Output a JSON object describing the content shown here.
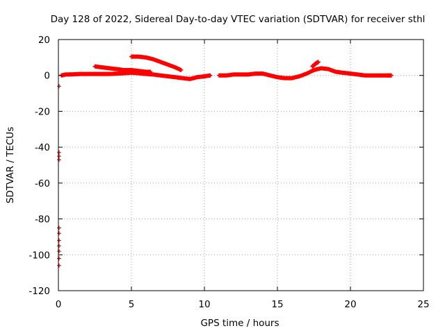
{
  "chart_data": {
    "type": "scatter",
    "title": "Day 128 of 2022, Sidereal Day-to-day VTEC variation (SDTVAR) for receiver sthl",
    "xlabel": "GPS time / hours",
    "ylabel": "SDTVAR / TECUs",
    "xlim": [
      0,
      25
    ],
    "ylim": [
      -120,
      20
    ],
    "xticks": [
      "0",
      "5",
      "10",
      "15",
      "20",
      "25"
    ],
    "yticks": [
      "20",
      "0",
      "-20",
      "-40",
      "-60",
      "-80",
      "-100",
      "-120"
    ],
    "grid": true,
    "marker_color": "#ff0000",
    "outlier_color": "#cc0000",
    "series": [
      {
        "x": [
          0.2,
          0.5,
          1.0,
          1.5,
          2.0,
          2.5,
          3.0,
          3.5,
          4.0,
          4.5,
          5.0,
          5.5,
          6.0,
          6.5,
          7.0,
          7.5,
          8.0,
          8.5,
          9.0,
          9.5,
          10.0,
          10.4,
          11.0,
          11.5,
          12.0,
          12.5,
          13.0,
          13.5,
          14.0,
          14.5,
          15.0,
          15.5,
          16.0,
          16.5,
          17.0,
          17.5,
          18.0,
          18.5,
          19.0,
          19.5,
          20.0,
          20.5,
          21.0,
          21.5,
          22.0,
          22.5,
          22.8
        ],
        "y": [
          0.0,
          0.5,
          0.6,
          0.8,
          0.8,
          0.8,
          0.8,
          0.8,
          1.0,
          1.2,
          1.5,
          1.2,
          0.8,
          0.5,
          0.0,
          -0.5,
          -1.0,
          -1.5,
          -2.0,
          -1.0,
          -0.5,
          0.0,
          0.0,
          0.0,
          0.5,
          0.5,
          0.5,
          1.0,
          1.0,
          0.0,
          -1.0,
          -1.5,
          -1.5,
          -0.5,
          1.0,
          3.0,
          4.0,
          3.5,
          2.0,
          1.5,
          1.0,
          0.5,
          0.0,
          0.0,
          0.0,
          0.0,
          0.0
        ]
      },
      {
        "x": [
          2.5,
          3.0,
          3.5,
          4.0,
          4.5,
          5.0,
          5.5,
          6.0,
          6.3
        ],
        "y": [
          5.0,
          4.5,
          4.0,
          3.5,
          3.0,
          3.0,
          2.5,
          2.0,
          2.0
        ]
      },
      {
        "x": [
          5.0,
          5.5,
          6.0,
          6.5,
          7.0,
          7.5,
          8.0,
          8.4
        ],
        "y": [
          10.5,
          10.5,
          10.0,
          9.0,
          7.5,
          6.0,
          4.5,
          3.0
        ]
      },
      {
        "x": [
          17.4,
          17.6,
          17.8
        ],
        "y": [
          5.0,
          6.5,
          7.5
        ]
      },
      {
        "x": [
          0.05,
          0.05,
          0.05,
          0.05,
          0.05,
          0.05,
          0.05,
          0.05,
          0.05,
          0.05,
          0.05
        ],
        "y": [
          -6,
          -43,
          -45,
          -47,
          -85,
          -88,
          -92,
          -95,
          -98,
          -102,
          -106
        ]
      }
    ]
  }
}
